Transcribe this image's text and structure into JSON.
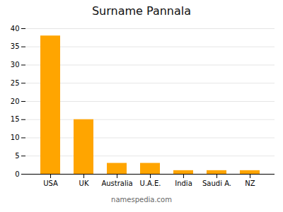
{
  "chart_data": {
    "type": "bar",
    "title": "Surname Pannala",
    "categories": [
      "USA",
      "UK",
      "Australia",
      "U.A.E.",
      "India",
      "Saudi A.",
      "NZ"
    ],
    "values": [
      38,
      15,
      3,
      3,
      1,
      1,
      1
    ],
    "color": "#FFA500",
    "ylim": [
      0,
      40
    ],
    "yticks": [
      0,
      5,
      10,
      15,
      20,
      25,
      30,
      35,
      40
    ],
    "grid": true,
    "annotations": [
      "namespedia.com"
    ]
  }
}
